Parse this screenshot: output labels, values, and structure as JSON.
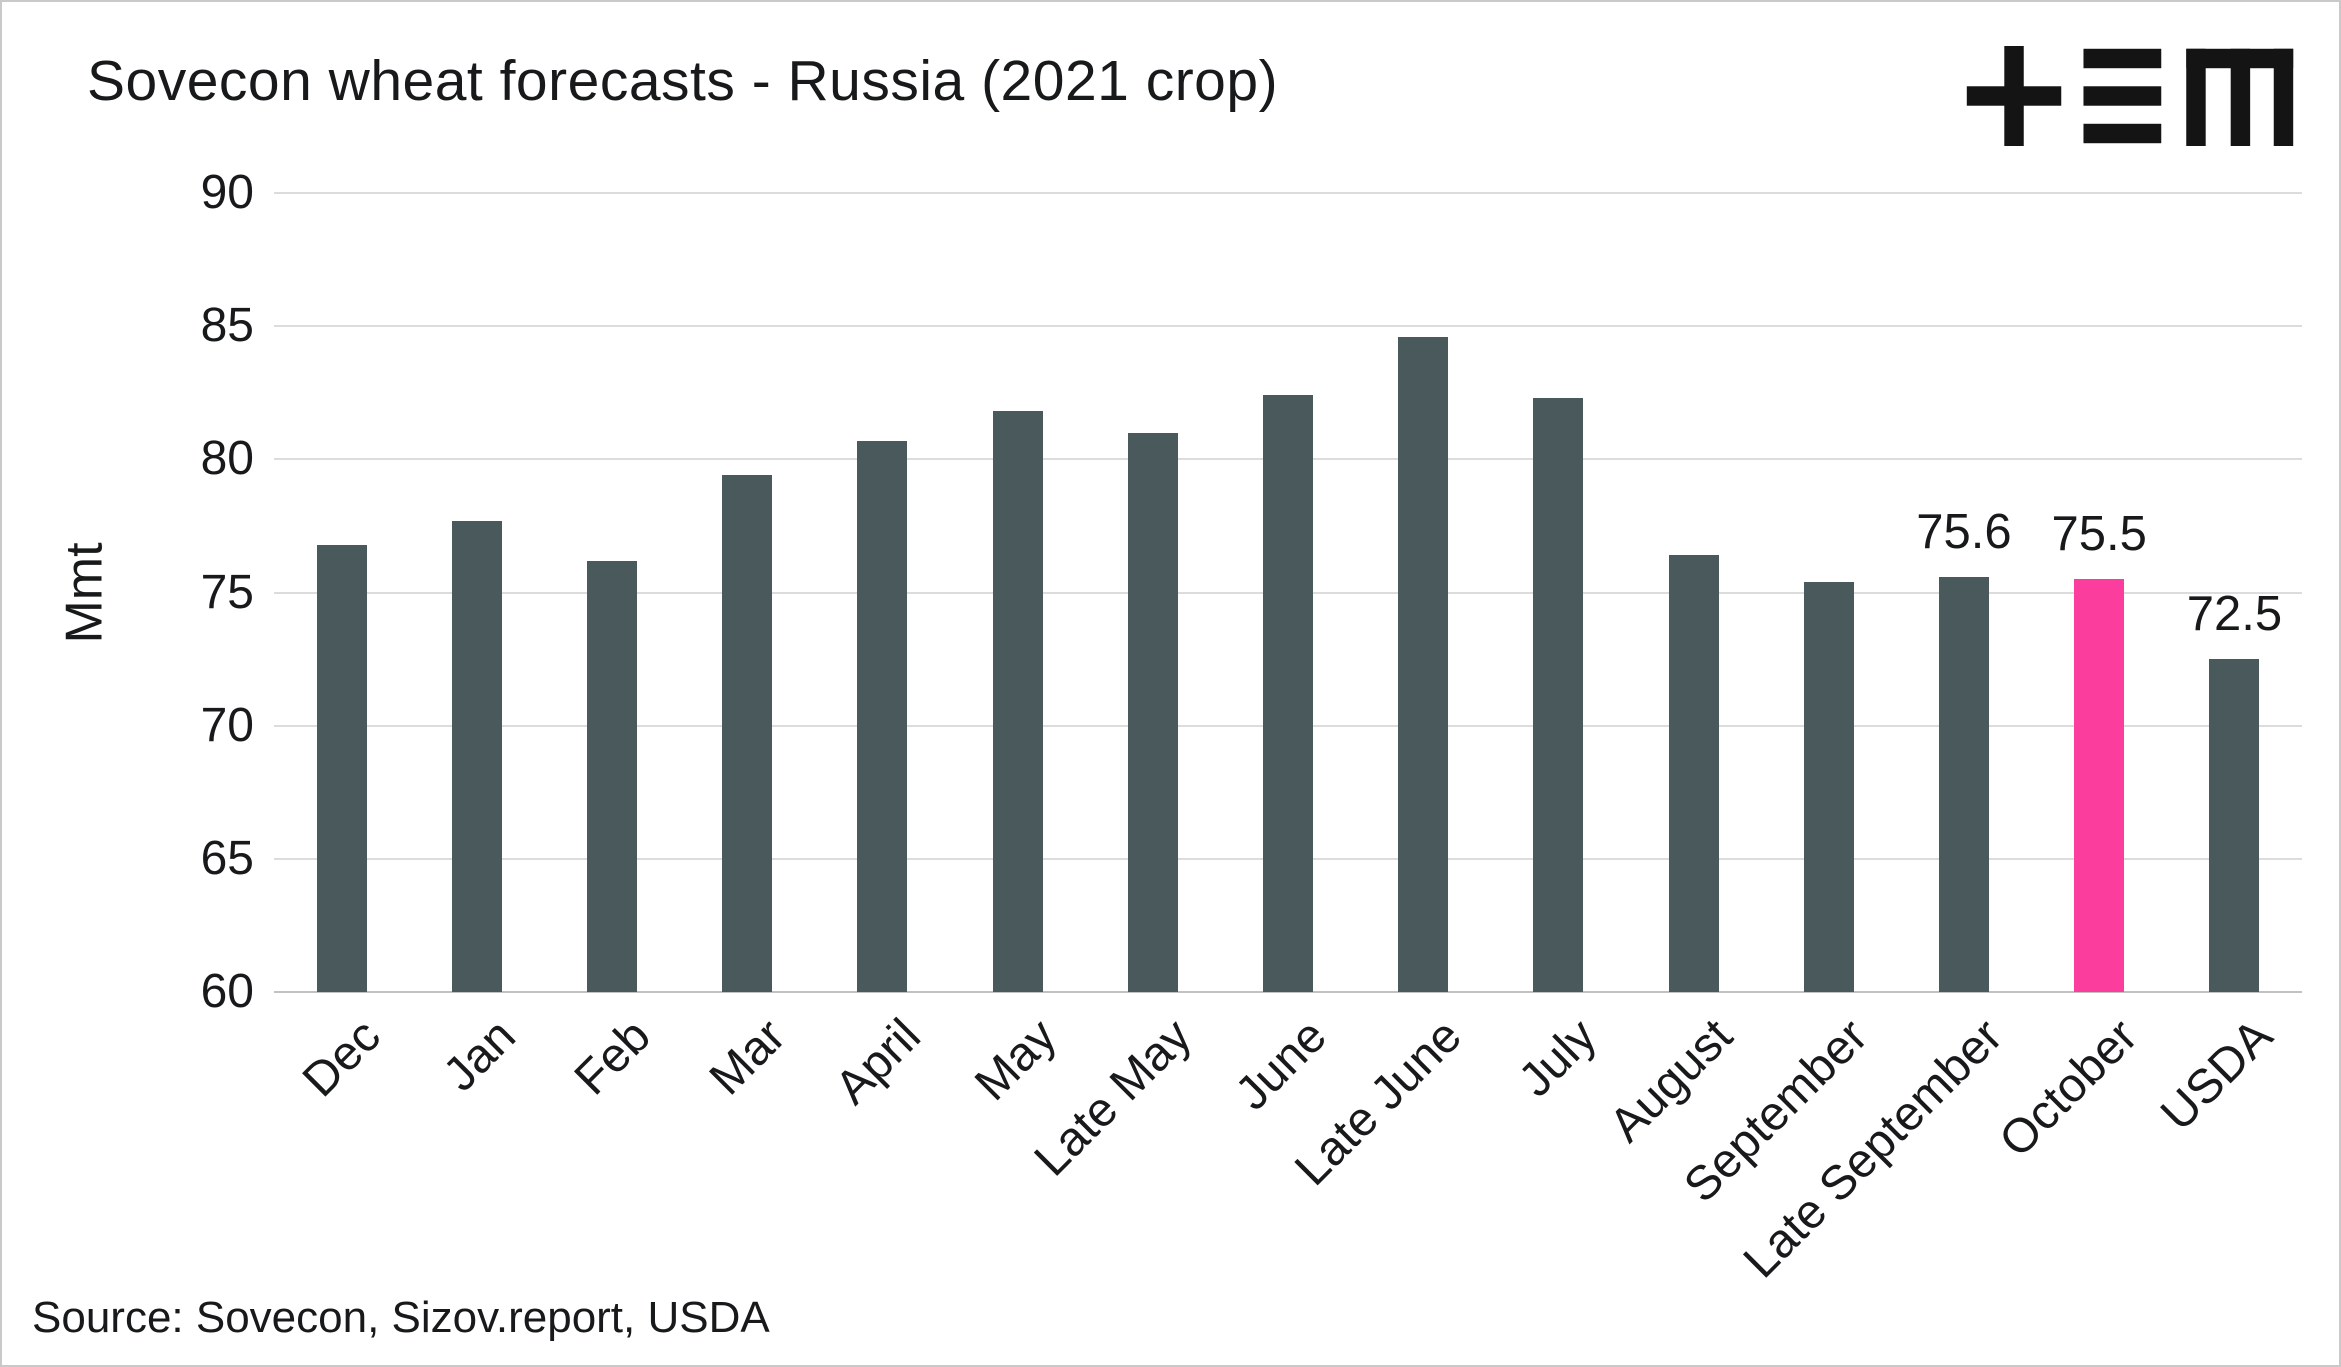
{
  "header": {
    "title": "Sovecon wheat forecasts - Russia (2021 crop)",
    "logo": "tem-logo"
  },
  "footer": {
    "source": "Source: Sovecon, Sizov.report, USDA"
  },
  "chart_data": {
    "type": "bar",
    "title": "Sovecon wheat forecasts - Russia (2021 crop)",
    "xlabel": "",
    "ylabel": "Mmt",
    "ylim": [
      60,
      90
    ],
    "yticks": [
      90,
      85,
      80,
      75,
      70,
      65,
      60
    ],
    "grid": true,
    "legend_position": "none",
    "categories": [
      "Dec",
      "Jan",
      "Feb",
      "Mar",
      "April",
      "May",
      "Late May",
      "June",
      "Late June",
      "July",
      "August",
      "September",
      "Late September",
      "October",
      "USDA"
    ],
    "values": [
      76.8,
      77.7,
      76.2,
      79.4,
      80.7,
      81.8,
      81.0,
      82.4,
      84.6,
      82.3,
      76.4,
      75.4,
      75.6,
      75.5,
      72.5
    ],
    "data_labels": [
      null,
      null,
      null,
      null,
      null,
      null,
      null,
      null,
      null,
      null,
      null,
      null,
      "75.6",
      "75.5",
      "72.5"
    ],
    "highlight_index": 13,
    "bar_color": "#4a595c",
    "highlight_color": "#fb3d9e",
    "gridline_color": "#dcdcdc",
    "axis_line_color": "#c2c2c2",
    "logo_color": "#141414"
  }
}
